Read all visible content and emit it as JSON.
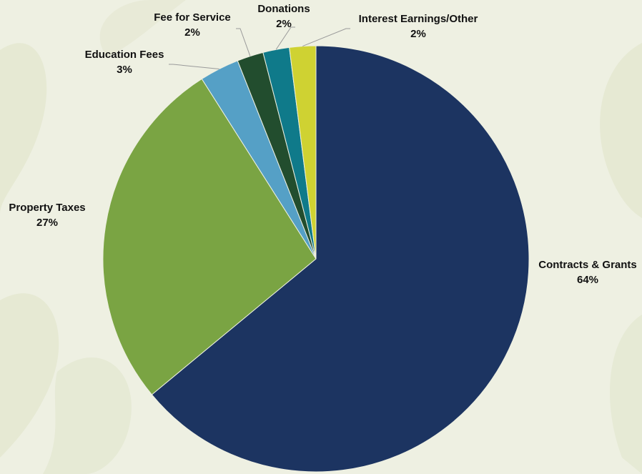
{
  "chart_data": {
    "type": "pie",
    "title": "",
    "slices": [
      {
        "label": "Contracts & Grants",
        "value": 64,
        "value_label": "64%",
        "color": "#1c3461"
      },
      {
        "label": "Property Taxes",
        "value": 27,
        "value_label": "27%",
        "color": "#7aa443"
      },
      {
        "label": "Education Fees",
        "value": 3,
        "value_label": "3%",
        "color": "#55a0c6"
      },
      {
        "label": "Fee for Service",
        "value": 2,
        "value_label": "2%",
        "color": "#224d2e"
      },
      {
        "label": "Donations",
        "value": 2,
        "value_label": "2%",
        "color": "#0f7a8a"
      },
      {
        "label": "Interest Earnings/Other",
        "value": 2,
        "value_label": "2%",
        "color": "#cfd232"
      }
    ],
    "start_angle": "12 o'clock",
    "direction": "clockwise",
    "legend": "none",
    "label_placement": "outside with leader lines for small slices"
  },
  "background": {
    "base_color": "#eef0e2",
    "decoration": "faint leaf shapes"
  }
}
